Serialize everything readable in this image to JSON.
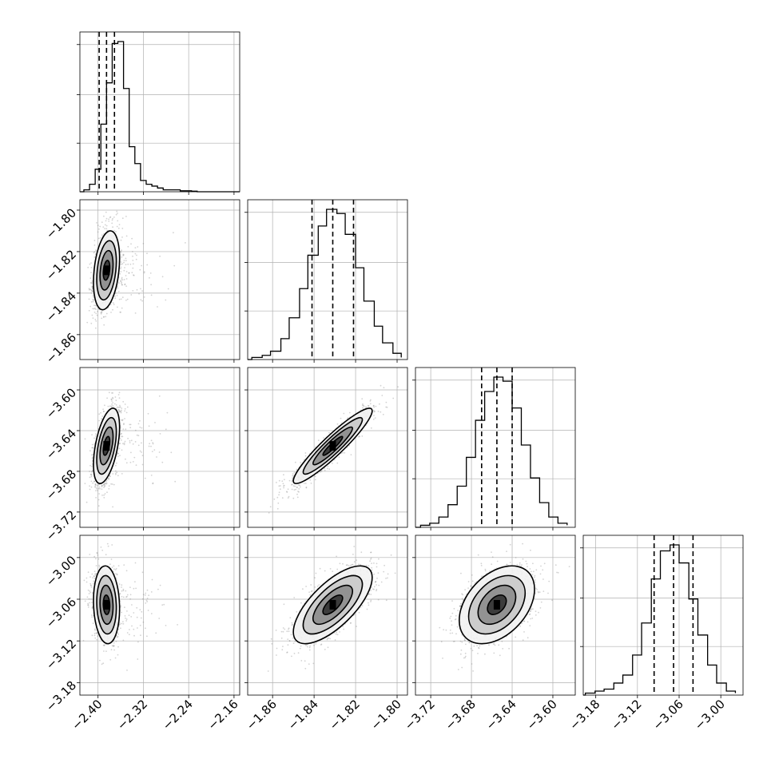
{
  "chart_data": {
    "type": "corner",
    "title": "",
    "parameters": [
      {
        "xlim": [
          -2.432,
          -2.15
        ],
        "x_ticks": [
          -2.4,
          -2.32,
          -2.24,
          -2.16
        ],
        "x_tick_labels": [
          "−2.40",
          "−2.32",
          "−2.24",
          "−2.16"
        ],
        "hist_bins": [
          -2.425,
          -2.415,
          -2.405,
          -2.395,
          -2.385,
          -2.375,
          -2.365,
          -2.355,
          -2.345,
          -2.335,
          -2.325,
          -2.315,
          -2.305,
          -2.295,
          -2.285,
          -2.275,
          -2.265,
          -2.255,
          -2.245,
          -2.235,
          -2.225
        ],
        "hist_counts": [
          1,
          4,
          12,
          36,
          58,
          79,
          80,
          55,
          24,
          15,
          6,
          4,
          3,
          2,
          1,
          1,
          1,
          0.5,
          0.5,
          0.3
        ],
        "quantiles": [
          -2.398,
          -2.385,
          -2.371
        ]
      },
      {
        "xlim": [
          -1.872,
          -1.795
        ],
        "ylim": [
          -1.872,
          -1.795
        ],
        "x_ticks": [
          -1.86,
          -1.84,
          -1.82,
          -1.8
        ],
        "x_tick_labels": [
          "−1.86",
          "−1.84",
          "−1.82",
          "−1.80"
        ],
        "y_ticks": [
          -1.8,
          -1.82,
          -1.84,
          -1.86
        ],
        "y_tick_labels": [
          "−1.80",
          "−1.82",
          "−1.84",
          "−1.86"
        ],
        "hist_bins": [
          -1.87,
          -1.865,
          -1.861,
          -1.856,
          -1.852,
          -1.847,
          -1.843,
          -1.838,
          -1.834,
          -1.829,
          -1.825,
          -1.82,
          -1.816,
          -1.811,
          -1.807,
          -1.802,
          -1.798
        ],
        "hist_counts": [
          1,
          2,
          4,
          10,
          20,
          34,
          50,
          64,
          72,
          70,
          60,
          44,
          28,
          16,
          8,
          3,
          1
        ],
        "quantiles": [
          -1.841,
          -1.831,
          -1.821
        ]
      },
      {
        "xlim": [
          -3.735,
          -3.578
        ],
        "ylim": [
          -3.735,
          -3.578
        ],
        "x_ticks": [
          -3.72,
          -3.68,
          -3.64,
          -3.6
        ],
        "x_tick_labels": [
          "−3.72",
          "−3.68",
          "−3.64",
          "−3.60"
        ],
        "y_ticks": [
          -3.6,
          -3.64,
          -3.68,
          -3.72
        ],
        "y_tick_labels": [
          "−3.60",
          "−3.64",
          "−3.68",
          "−3.72"
        ],
        "hist_bins": [
          -3.73,
          -3.721,
          -3.712,
          -3.703,
          -3.694,
          -3.685,
          -3.676,
          -3.667,
          -3.658,
          -3.649,
          -3.64,
          -3.631,
          -3.622,
          -3.613,
          -3.604,
          -3.595,
          -3.586
        ],
        "hist_counts": [
          1,
          2,
          5,
          11,
          20,
          34,
          52,
          66,
          73,
          71,
          58,
          40,
          24,
          12,
          5,
          2,
          1
        ],
        "quantiles": [
          -3.67,
          -3.655,
          -3.64
        ]
      },
      {
        "xlim": [
          -3.198,
          -2.968
        ],
        "ylim": [
          -3.198,
          -2.968
        ],
        "x_ticks": [
          -3.18,
          -3.12,
          -3.06,
          -3.0
        ],
        "x_tick_labels": [
          "−3.18",
          "−3.12",
          "−3.06",
          "−3.00"
        ],
        "y_ticks": [
          -3.0,
          -3.06,
          -3.12,
          -3.18
        ],
        "y_tick_labels": [
          "−3.00",
          "−3.06",
          "−3.12",
          "−3.18"
        ],
        "hist_bins": [
          -3.195,
          -3.181,
          -3.168,
          -3.154,
          -3.141,
          -3.127,
          -3.114,
          -3.1,
          -3.087,
          -3.073,
          -3.06,
          -3.046,
          -3.033,
          -3.019,
          -3.006,
          -2.992,
          -2.979
        ],
        "hist_counts": [
          1,
          2,
          3,
          6,
          10,
          20,
          36,
          58,
          72,
          75,
          66,
          48,
          30,
          15,
          6,
          2,
          1
        ],
        "quantiles": [
          -3.096,
          -3.068,
          -3.04
        ]
      }
    ],
    "pairs": [
      {
        "col": 0,
        "row": 1,
        "center": [
          -2.385,
          -1.829
        ],
        "sigma": [
          0.0115,
          0.0095
        ],
        "rho": 0.3
      },
      {
        "col": 0,
        "row": 2,
        "center": [
          -2.385,
          -3.655
        ],
        "sigma": [
          0.0115,
          0.0185
        ],
        "rho": 0.5
      },
      {
        "col": 1,
        "row": 2,
        "center": [
          -1.831,
          -3.655
        ],
        "sigma": [
          0.0095,
          0.0185
        ],
        "rho": 0.93
      },
      {
        "col": 0,
        "row": 3,
        "center": [
          -2.385,
          -3.068
        ],
        "sigma": [
          0.0115,
          0.028
        ],
        "rho": -0.1
      },
      {
        "col": 1,
        "row": 3,
        "center": [
          -1.831,
          -3.068
        ],
        "sigma": [
          0.0095,
          0.028
        ],
        "rho": 0.7
      },
      {
        "col": 2,
        "row": 3,
        "center": [
          -3.655,
          -3.068
        ],
        "sigma": [
          0.0185,
          0.028
        ],
        "rho": 0.4
      }
    ],
    "contour_levels_sigma": [
      0.5,
      1.0,
      1.5,
      2.0
    ],
    "grid": true,
    "colors": {
      "line": "#000000",
      "grid": "#b0b0b0",
      "point": "#808080"
    }
  }
}
